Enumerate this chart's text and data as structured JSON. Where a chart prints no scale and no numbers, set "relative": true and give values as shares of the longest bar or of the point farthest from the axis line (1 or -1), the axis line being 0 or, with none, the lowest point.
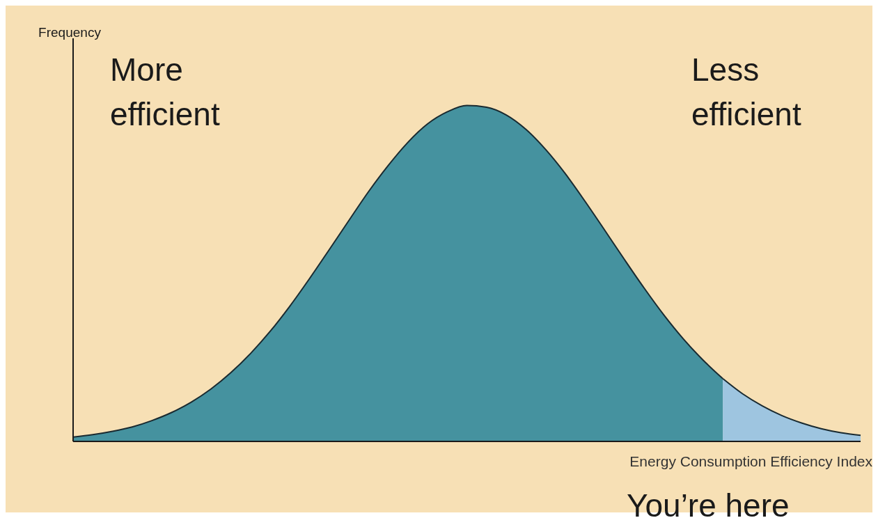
{
  "chart_data": {
    "type": "area",
    "relative": true,
    "ylabel": "Frequency",
    "xlabel": "Energy Consumption Efficiency Index",
    "categories": [
      null,
      null,
      null,
      null,
      null,
      null,
      null,
      null,
      null,
      null,
      null,
      null,
      null,
      null,
      null,
      null,
      null,
      null,
      null,
      null,
      null,
      null,
      null,
      null,
      null,
      null,
      null,
      null,
      null,
      null,
      null,
      null,
      null,
      null,
      null,
      null,
      null,
      null,
      null,
      null,
      null
    ],
    "series": [
      {
        "color": "#45929f",
        "values": [
          0.013,
          0.02,
          0.03,
          0.043,
          0.062,
          0.086,
          0.117,
          0.156,
          0.204,
          0.261,
          0.327,
          0.402,
          0.484,
          0.57,
          0.657,
          0.743,
          0.821,
          0.89,
          0.945,
          0.981,
          1,
          0.995,
          0.972,
          0.929,
          0.869,
          0.797,
          0.715,
          0.629,
          0.542,
          0.457,
          0.377,
          0.305,
          0.242,
          0.187,
          null,
          null,
          null,
          null,
          null,
          null,
          null
        ]
      },
      {
        "color": "#9ec5e0",
        "values": [
          null,
          null,
          null,
          null,
          null,
          null,
          null,
          null,
          null,
          null,
          null,
          null,
          null,
          null,
          null,
          null,
          null,
          null,
          null,
          null,
          null,
          null,
          null,
          null,
          null,
          null,
          null,
          null,
          null,
          null,
          null,
          null,
          null,
          0.187,
          0.142,
          0.106,
          0.077,
          0.055,
          0.038,
          0.026,
          0.018
        ]
      }
    ],
    "annotations": [
      "More\nefficient",
      "Less\nefficient",
      "You’re here"
    ],
    "tick_labels": false,
    "grid": false,
    "legend": false
  }
}
